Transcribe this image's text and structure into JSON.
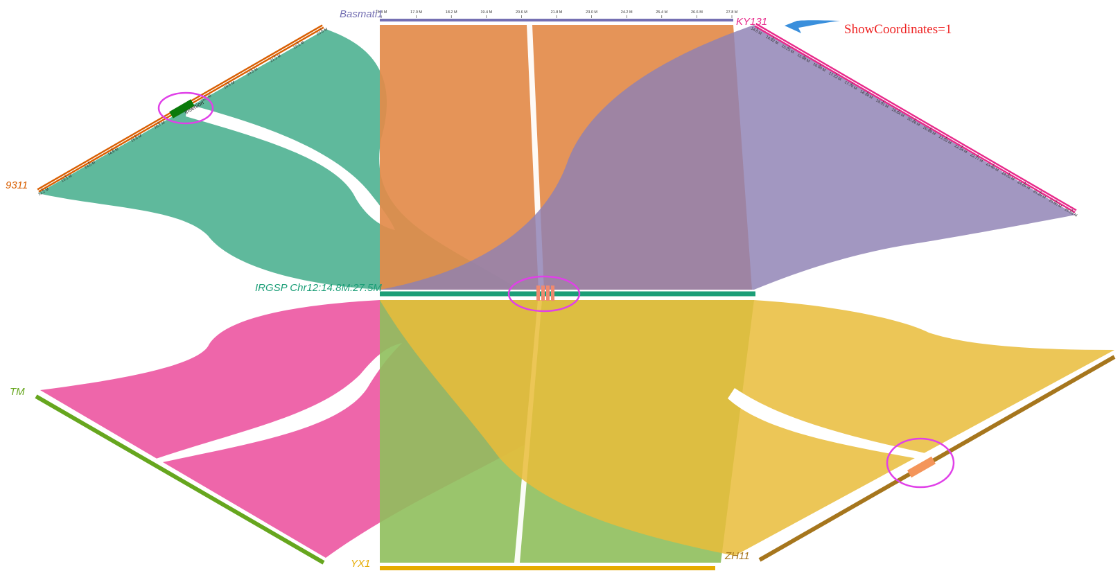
{
  "genomes": {
    "basmati": {
      "name": "Basmati1",
      "color": "#7570b3"
    },
    "ky131": {
      "name": "KY131",
      "color": "#e7298a"
    },
    "g9311": {
      "name": "9311",
      "color": "#d95f02"
    },
    "irgsp": {
      "name": "IRGSP Chr12:14.8M:27.5M",
      "color": "#1b9e77"
    },
    "tm": {
      "name": "TM",
      "color": "#66a61e"
    },
    "yx1": {
      "name": "YX1",
      "color": "#e6ab02"
    },
    "zh11": {
      "name": "ZH11",
      "color": "#a6761d"
    }
  },
  "ribbon_colors": {
    "irgsp_9311": "#5fb99c",
    "basmati_irgsp": "#e38b4a",
    "ky131_irgsp": "#8d80b3",
    "tm_irgsp": "#ee66aa",
    "yx1_irgsp": "#8fbf5c",
    "zh11_irgsp": "#e9bc3a"
  },
  "ticks": {
    "basmati": [
      "15.8 M",
      "17.0 M",
      "18.2 M",
      "19.4 M",
      "20.6 M",
      "21.8 M",
      "23.0 M",
      "24.2 M",
      "25.4 M",
      "26.6 M",
      "27.8 M"
    ],
    "ky131": [
      "14.0 M",
      "14.62 M",
      "15.25 M",
      "15.88 M",
      "16.50 M",
      "17.13 M",
      "17.76 M",
      "18.38 M",
      "19.01 M",
      "19.64 M",
      "20.26 M",
      "20.89 M",
      "21.52 M",
      "22.14 M",
      "22.77 M",
      "23.40 M",
      "24.02 M",
      "24.65 M",
      "25.28 M",
      "25.90 M",
      "26.53 M"
    ],
    "g9311": [
      "12.2 M",
      "13.1 M",
      "14.0 M",
      "14.9 M",
      "15.8 M",
      "16.7 M",
      "17.6 M",
      "18.5 M",
      "19.4 M",
      "20.3 M",
      "21.2 M",
      "22.1 M",
      "23.0 M"
    ]
  },
  "annotations": {
    "insertion_label": "Insertion",
    "show_coordinates": "ShowCoordinates=1",
    "arrow_color": "#3a8fdc",
    "highlight_color": "#e040e8",
    "insertion_color": "#0a7a0a",
    "highlight_block_color": "#f4955a"
  }
}
